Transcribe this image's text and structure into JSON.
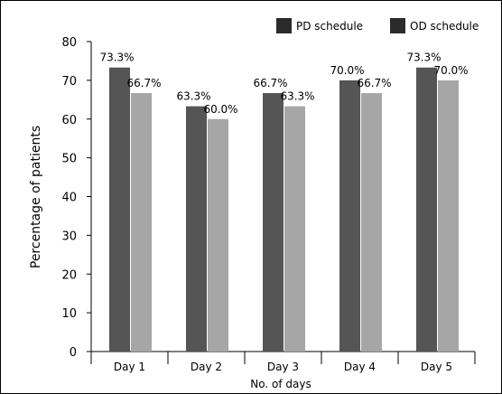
{
  "chart_data": {
    "type": "bar",
    "title": "",
    "xlabel": "No. of days",
    "ylabel": "Percentage of patients",
    "categories": [
      "Day 1",
      "Day 2",
      "Day 3",
      "Day 4",
      "Day 5"
    ],
    "ylim": [
      0,
      80
    ],
    "yticks": [
      0,
      10,
      20,
      30,
      40,
      50,
      60,
      70,
      80
    ],
    "series": [
      {
        "name": "PD schedule",
        "color": "#555555",
        "values": [
          73.3,
          63.3,
          66.7,
          70.0,
          73.3
        ],
        "labels": [
          "73.3%",
          "63.3%",
          "66.7%",
          "70.0%",
          "73.3%"
        ]
      },
      {
        "name": "OD schedule",
        "color": "#a6a6a6",
        "values": [
          66.7,
          60.0,
          63.3,
          66.7,
          70.0
        ],
        "labels": [
          "66.7%",
          "60.0%",
          "63.3%",
          "66.7%",
          "70.0%"
        ]
      }
    ],
    "legend": {
      "position": "top-right",
      "items": [
        {
          "label": "PD schedule",
          "color": "#2b2b2b"
        },
        {
          "label": "OD schedule",
          "color": "#2b2b2b"
        }
      ]
    },
    "grid": false
  }
}
